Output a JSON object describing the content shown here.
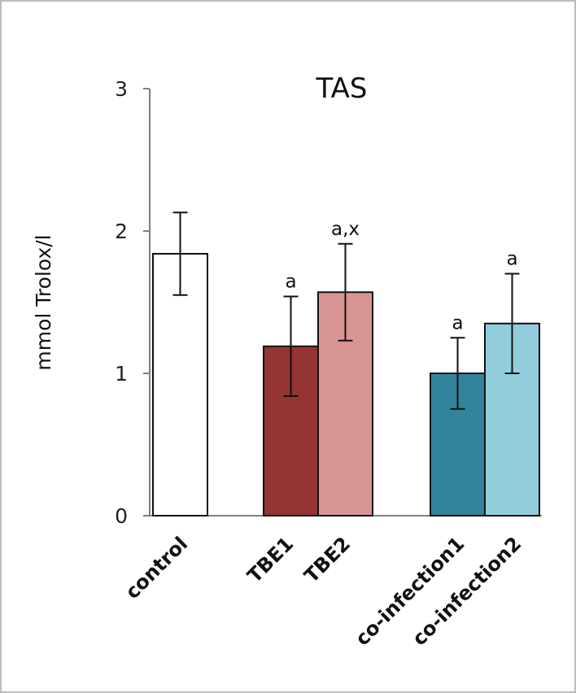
{
  "chart_data": {
    "type": "bar",
    "title": "TAS",
    "xlabel": "",
    "ylabel": "mmol Trolox/l",
    "ylim": [
      0,
      3
    ],
    "yticks": [
      "0",
      "1",
      "2",
      "3"
    ],
    "grid": false,
    "categories": [
      "control",
      "TBE1",
      "TBE2",
      "co-infection1",
      "co-infection2"
    ],
    "values": [
      1.84,
      1.19,
      1.57,
      1.0,
      1.35
    ],
    "errors": [
      0.29,
      0.35,
      0.34,
      0.25,
      0.35
    ],
    "annotations": [
      "",
      "a",
      "a,x",
      "a",
      "a"
    ],
    "colors": [
      "#ffffff",
      "#943434",
      "#d99594",
      "#31849b",
      "#92cddc"
    ]
  }
}
